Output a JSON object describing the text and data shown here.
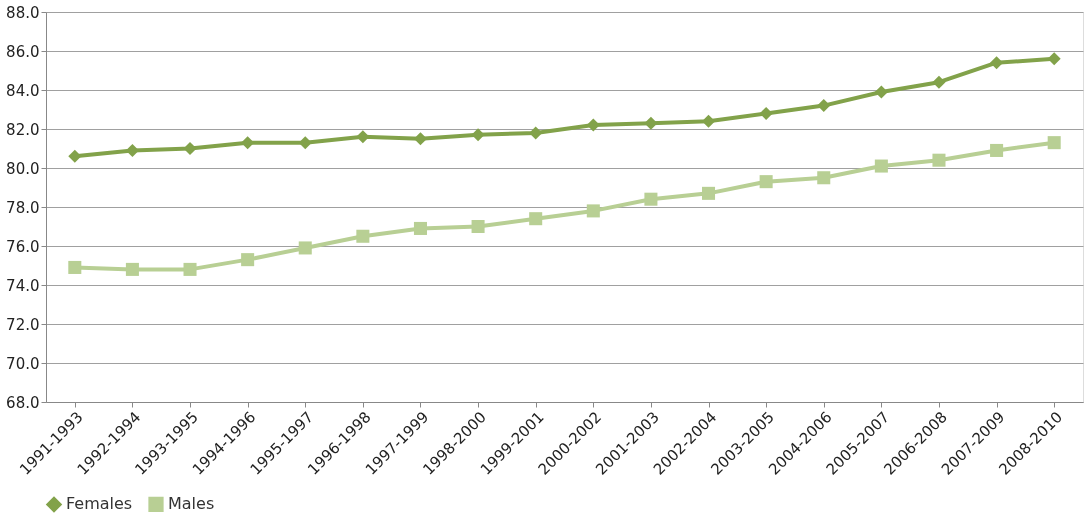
{
  "chart_data": {
    "type": "line",
    "categories": [
      "1991-1993",
      "1992-1994",
      "1993-1995",
      "1994-1996",
      "1995-1997",
      "1996-1998",
      "1997-1999",
      "1998-2000",
      "1999-2001",
      "2000-2002",
      "2001-2003",
      "2002-2004",
      "2003-2005",
      "2004-2006",
      "2005-2007",
      "2006-2008",
      "2007-2009",
      "2008-2010"
    ],
    "series": [
      {
        "name": "Females",
        "color": "#82a24a",
        "marker": "diamond",
        "values": [
          80.6,
          80.9,
          81.0,
          81.3,
          81.3,
          81.6,
          81.5,
          81.7,
          81.8,
          82.2,
          82.3,
          82.4,
          82.8,
          83.2,
          83.9,
          84.4,
          85.4,
          85.6
        ]
      },
      {
        "name": "Males",
        "color": "#b8cf94",
        "marker": "square",
        "values": [
          74.9,
          74.8,
          74.8,
          75.3,
          75.9,
          76.5,
          76.9,
          77.0,
          77.4,
          77.8,
          78.4,
          78.7,
          79.3,
          79.5,
          80.1,
          80.4,
          80.9,
          81.3
        ]
      }
    ],
    "ylim": [
      68,
      88
    ],
    "yticks": [
      {
        "value": 68,
        "label": "68.0"
      },
      {
        "value": 70,
        "label": "70.0"
      },
      {
        "value": 72,
        "label": "72.0"
      },
      {
        "value": 74,
        "label": "74.0"
      },
      {
        "value": 76,
        "label": "76.0"
      },
      {
        "value": 78,
        "label": "78.0"
      },
      {
        "value": 80,
        "label": "80.0"
      },
      {
        "value": 82,
        "label": "82.0"
      },
      {
        "value": 84,
        "label": "84.0"
      },
      {
        "value": 86,
        "label": "86.0"
      },
      {
        "value": 88,
        "label": "88.0"
      }
    ],
    "grid": "y",
    "legend": "bottom",
    "line_style": "solid"
  }
}
